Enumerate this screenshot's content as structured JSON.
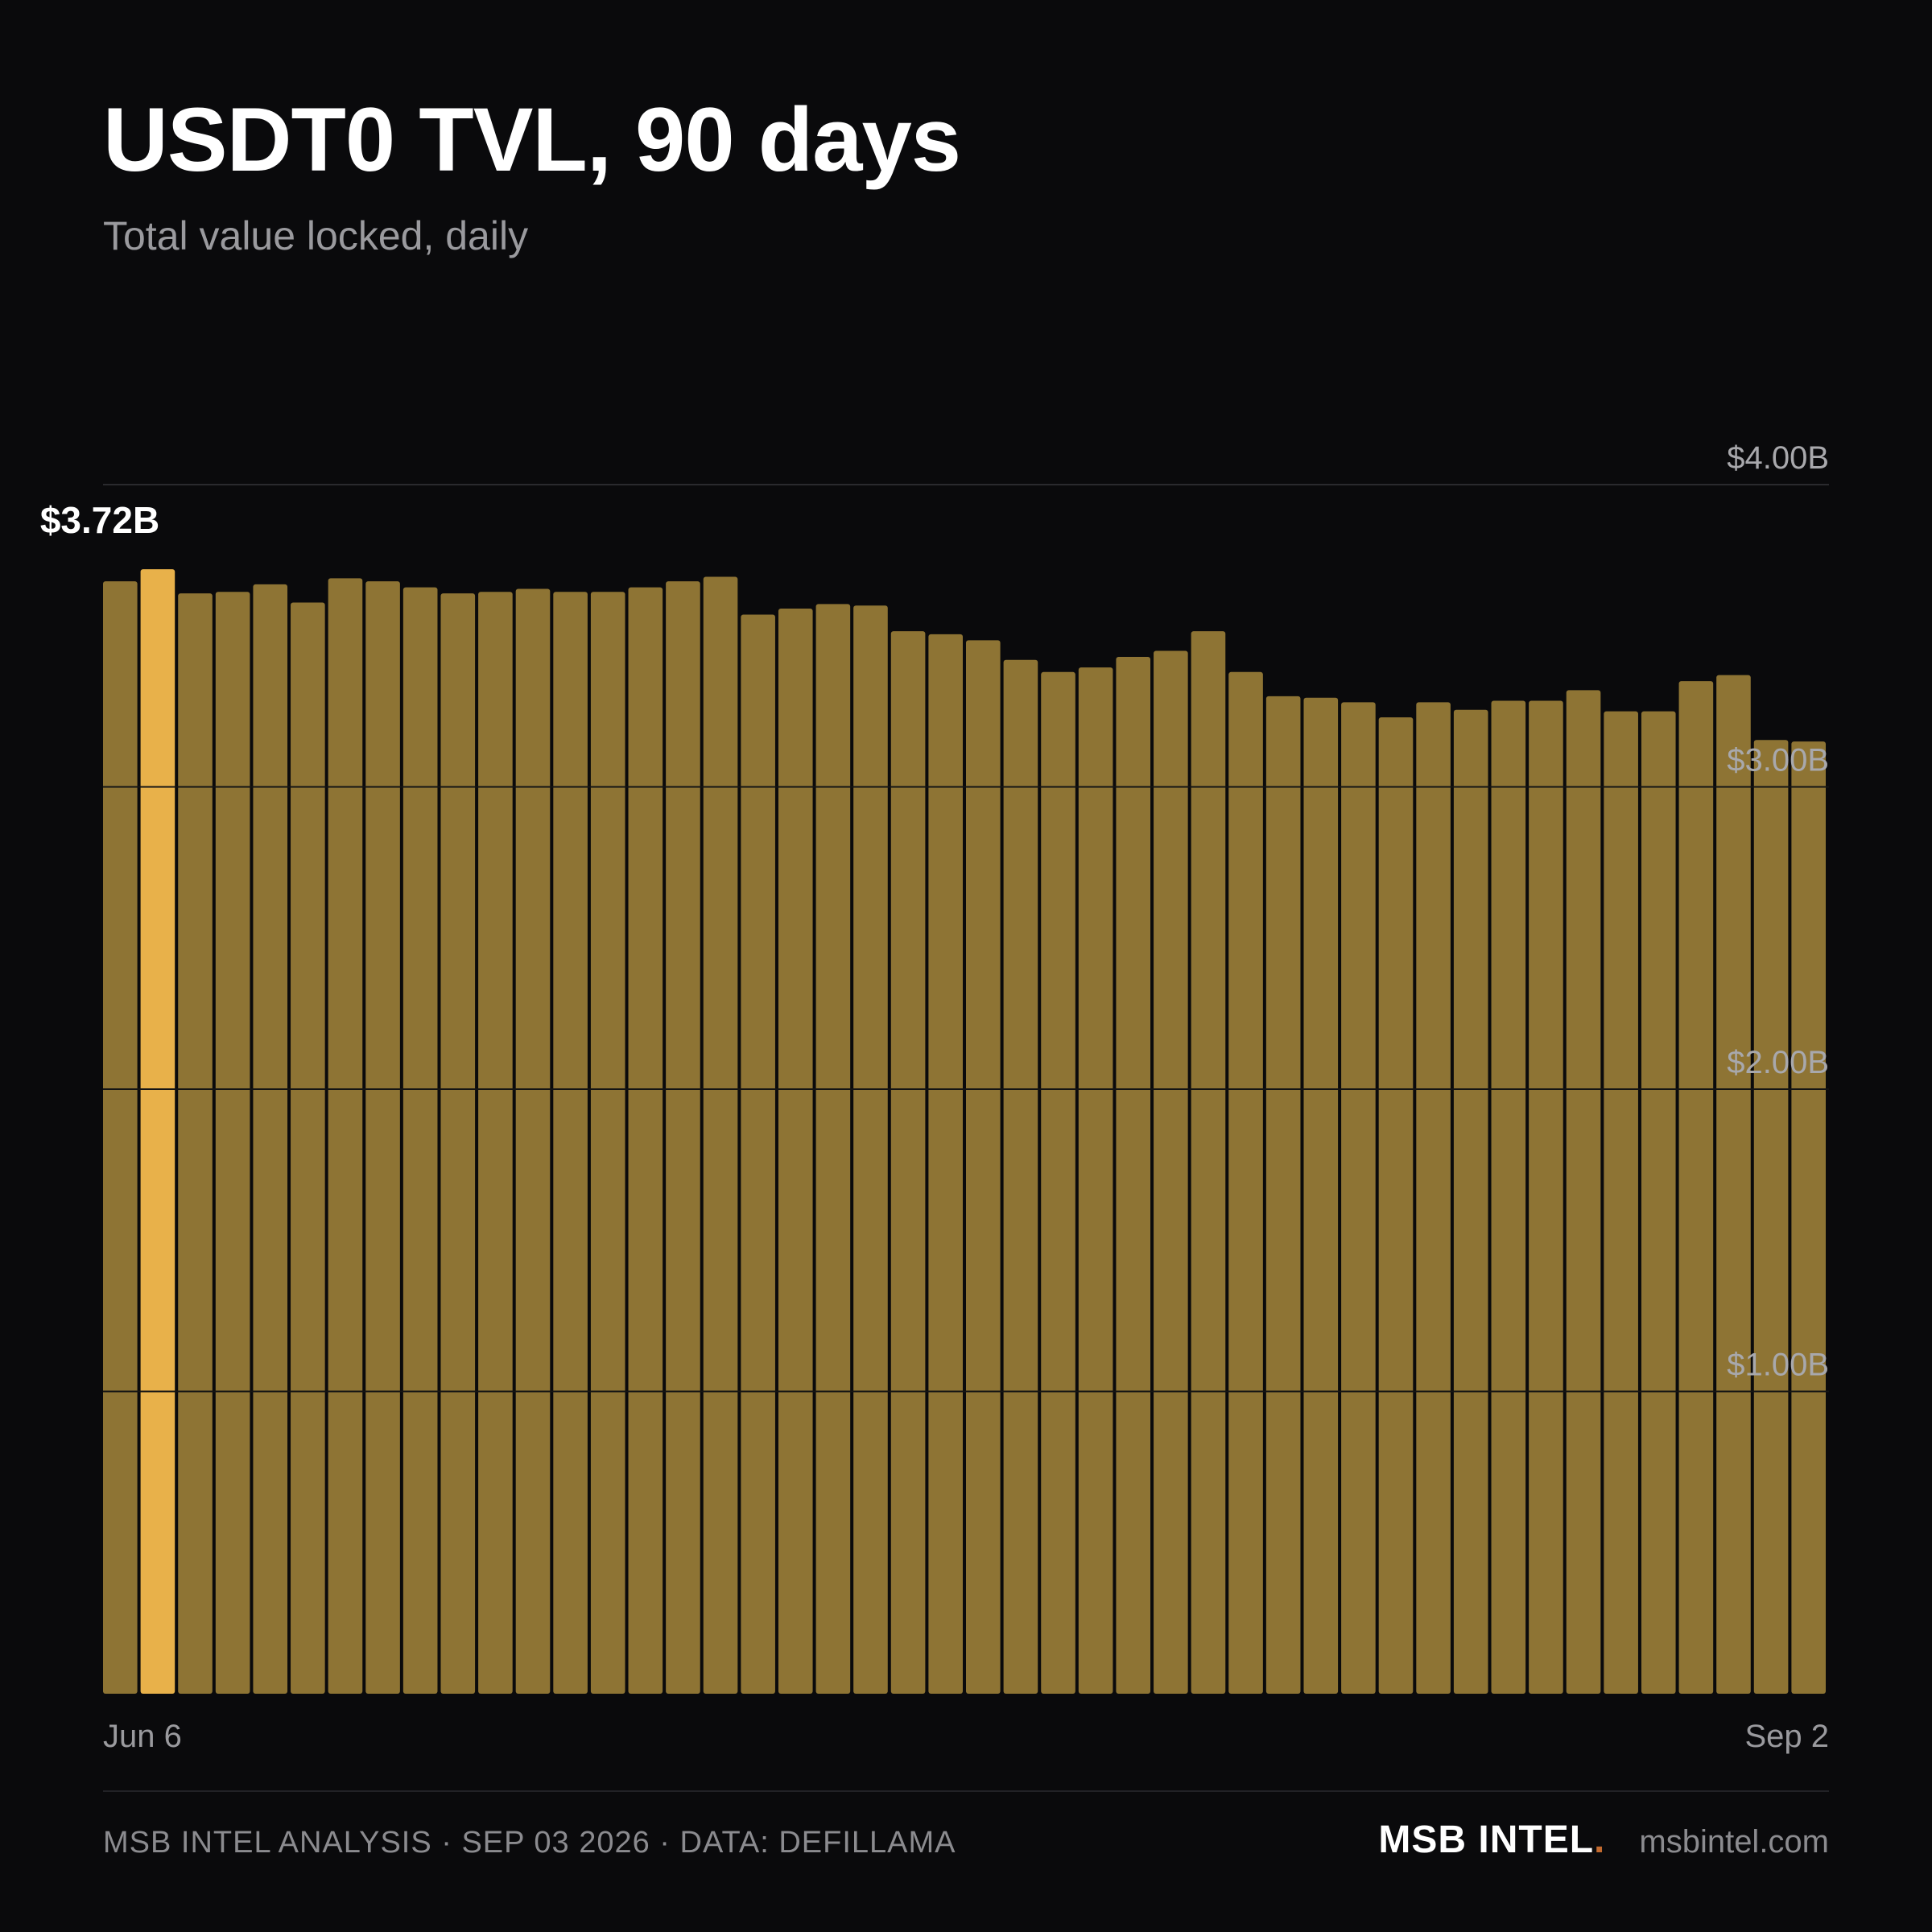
{
  "header": {
    "title": "USDT0 TVL, 90 days",
    "subtitle": "Total value locked, daily"
  },
  "footer": {
    "analysis": "MSB INTEL ANALYSIS · SEP 03 2026 · DATA: DEFILLAMA",
    "brand": "MSB INTEL",
    "brand_dot": ".",
    "site": "msbintel.com"
  },
  "colors": {
    "background": "#0a0a0c",
    "bar": "#8e7434",
    "bar_highlight": "#e8b14a",
    "grid": "#2a2a2e",
    "accent_dot": "#c26a2f"
  },
  "chart_data": {
    "type": "bar",
    "title": "USDT0 TVL, 90 days",
    "subtitle": "Total value locked, daily",
    "x_start_label": "Jun 6",
    "x_end_label": "Sep 2",
    "y_tick_labels": [
      "$1.00B",
      "$2.00B",
      "$3.00B",
      "$4.00B"
    ],
    "y_ticks": [
      1,
      2,
      3,
      4
    ],
    "ylim": [
      0,
      4
    ],
    "unit": "billion USD",
    "grid": true,
    "highlight_index": 1,
    "highlight_label": "$3.72B",
    "values": [
      3.68,
      3.72,
      3.64,
      3.645,
      3.67,
      3.61,
      3.69,
      3.68,
      3.66,
      3.64,
      3.645,
      3.655,
      3.645,
      3.645,
      3.66,
      3.68,
      3.695,
      3.57,
      3.59,
      3.605,
      3.6,
      3.515,
      3.505,
      3.485,
      3.42,
      3.38,
      3.395,
      3.43,
      3.45,
      3.515,
      3.38,
      3.3,
      3.295,
      3.28,
      3.23,
      3.28,
      3.255,
      3.285,
      3.285,
      3.32,
      3.25,
      3.25,
      3.35,
      3.37,
      3.155,
      3.15
    ]
  }
}
